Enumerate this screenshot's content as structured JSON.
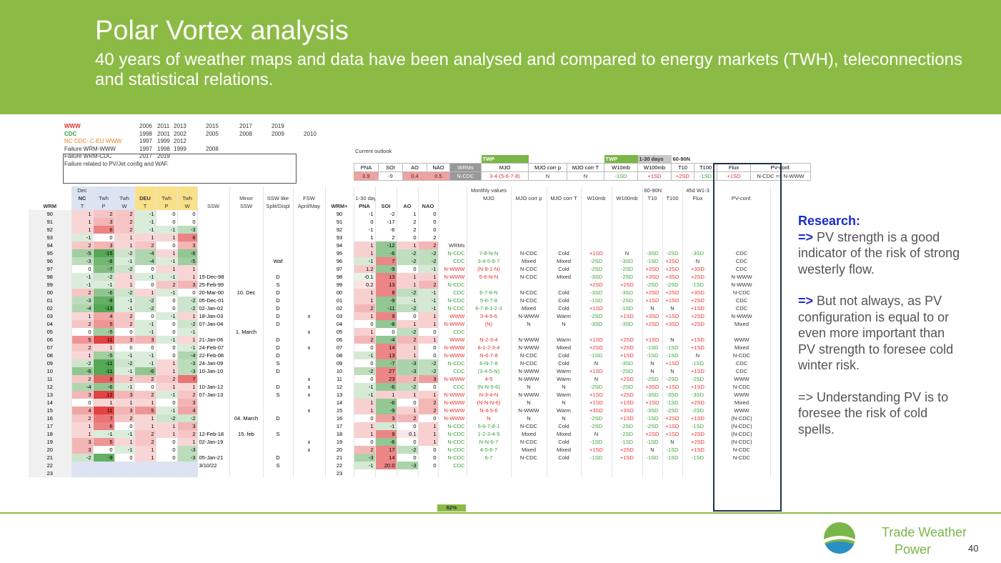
{
  "header": {
    "title": "Polar Vortex analysis",
    "subtitle": "40 years of weather maps and data have been analysed and compared to energy markets (TWH), teleconnections and statistical relations."
  },
  "legend": {
    "items": [
      {
        "label": "WWW",
        "years": [
          "2006",
          "2011",
          "2013",
          "2015",
          "2017",
          "2019"
        ]
      },
      {
        "label": "CDC",
        "years": [
          "1998",
          "2001",
          "2002",
          "2005",
          "2008",
          "2009",
          "2010"
        ]
      },
      {
        "label": "NC CDC- C-EU WWW",
        "years": [
          "1997",
          "1999",
          "2012"
        ]
      },
      {
        "label": "Failure WRM-WWW",
        "years": [
          "1997",
          "1998",
          "1999",
          "2008"
        ]
      },
      {
        "label": "Failure WRM-CDC",
        "years": [
          "2017",
          "2019"
        ]
      }
    ],
    "note": "Failure related to PV/Jet config and WAF."
  },
  "outlook": {
    "label": "Current outlook",
    "tags": [
      "TWP",
      "TWP",
      "1-30 days",
      "60-90N"
    ],
    "columns": [
      "PNA",
      "SOI",
      "AO",
      "NAO",
      "WRMs",
      "MJO",
      "MJO corr p",
      "MJO corr T",
      "W10mb",
      "W100mb",
      "T10",
      "T100",
      "Flux",
      "PV-conf."
    ],
    "values": [
      "0.9",
      "-9",
      "0.4",
      "0.5",
      "N-CDC",
      "3-4-(5-6-7-8)",
      "N",
      "N",
      "-1SD",
      "+1SD",
      "+2SD",
      "-1SD",
      "+1SD",
      "N-CDC => N-WWW"
    ]
  },
  "table": {
    "header_rows": [
      [
        null,
        "Dec",
        null,
        null,
        null,
        null,
        null,
        null,
        null,
        null,
        null,
        null,
        null,
        null,
        null,
        null,
        null,
        "Monthly values",
        null,
        null,
        null,
        null,
        "60-90N",
        null,
        "45d W1-3",
        null
      ],
      [
        null,
        "NC",
        "Twh",
        "Twh",
        "DEU",
        "Twh",
        "Twh",
        null,
        "Minor",
        "SSW like",
        "FSW",
        null,
        "1-30 days",
        null,
        null,
        null,
        null,
        "MJO",
        "MJO corr p",
        "MJO corr T",
        "W10mb",
        "W100mb",
        "T10",
        "T100",
        "Flux",
        "PV-conf."
      ],
      [
        "WRM",
        "T",
        "P",
        "W",
        "T",
        "P",
        "W",
        "SSW",
        "SSW",
        "Split/Displ",
        "April/May",
        "WRM+",
        "PNA",
        "SOI",
        "AO",
        "NAO",
        null,
        null,
        null,
        null,
        null,
        null,
        null,
        null,
        null,
        null
      ]
    ],
    "rows": [
      [
        "90",
        "1",
        "2",
        "2",
        "-1",
        "0",
        "0",
        null,
        null,
        null,
        null,
        "90",
        "-1",
        "-2",
        "1",
        "0",
        null,
        null,
        null,
        null,
        null,
        null,
        null,
        null,
        null,
        null
      ],
      [
        "91",
        "1",
        "3",
        "2",
        "-1",
        "0",
        "0",
        null,
        null,
        null,
        null,
        "91",
        "0",
        "-17",
        "2",
        "0",
        null,
        null,
        null,
        null,
        null,
        null,
        null,
        null,
        null,
        null
      ],
      [
        "92",
        "1",
        "6",
        "2",
        "-1",
        "-1",
        "-3",
        null,
        null,
        null,
        null,
        "92",
        "-1",
        "-6",
        "2",
        "0",
        null,
        null,
        null,
        null,
        null,
        null,
        null,
        null,
        null,
        null
      ],
      [
        "93",
        "-1",
        "0",
        "1",
        "1",
        "1",
        "6",
        null,
        null,
        null,
        null,
        "93",
        "1",
        "2",
        "0",
        "2",
        null,
        null,
        null,
        null,
        null,
        null,
        null,
        null,
        null,
        null
      ],
      [
        "94",
        "2",
        "3",
        "1",
        "2",
        "0",
        "3",
        null,
        null,
        null,
        null,
        "94",
        "1",
        "-12",
        "1",
        "2",
        "WRMs",
        null,
        null,
        null,
        null,
        null,
        null,
        null,
        null,
        null
      ],
      [
        "95",
        "-5",
        "-15",
        "-2",
        "-4",
        "1",
        "-6",
        null,
        null,
        null,
        null,
        "95",
        "1",
        "-6",
        "-2",
        "-2",
        "N-CDC",
        "7-8-N-N",
        "N-CDC",
        "Cold",
        "+1SD",
        "N",
        "-3SD",
        "-2SD",
        "-3SD",
        "CDC"
      ],
      [
        "96",
        "-3",
        "-8",
        "-1",
        "-4",
        "-1",
        "-5",
        null,
        null,
        "Waf",
        null,
        "96",
        "-1",
        "7",
        "-2",
        "-2",
        "CDC",
        "3-4-5-6-7",
        "Mixed",
        "Mixed",
        "-2SD",
        "-3SD",
        "-1SD",
        "+2SD",
        "N",
        "CDC"
      ],
      [
        "97",
        "0",
        "-7",
        "-2",
        "0",
        "1",
        "1",
        null,
        null,
        null,
        null,
        "97",
        "1.2",
        "-9",
        "0",
        "-1",
        "N-WWW",
        "(N-8-1-N)",
        "N-CDC",
        "Cold",
        "-2SD",
        "-2SD",
        "+2SD",
        "+2SD",
        "+3SD",
        "CDC"
      ],
      [
        "98",
        "-1",
        "-2",
        "1",
        "-1",
        "-1",
        "1",
        "15-Dec-98",
        null,
        "D",
        null,
        "98",
        "-0.1",
        "13",
        "1",
        "1",
        "N-WWW",
        "5-6-N-N",
        "N-CDC",
        "Mixed",
        "-3SD",
        "-2SD",
        "+3SD",
        "+3SD",
        "+2SD",
        "N-WWW"
      ],
      [
        "99",
        "-1",
        "-1",
        "1",
        "0",
        "2",
        "3",
        "25-Feb-99",
        null,
        "S",
        null,
        "99",
        "0.2",
        "13",
        "1",
        "2",
        "N-CDC",
        null,
        null,
        null,
        "+2SD",
        "+2SD",
        "-2SD",
        "-2SD",
        "-1SD",
        "N-WWW"
      ],
      [
        "00",
        "2",
        "-6",
        "-2",
        "1",
        "-1",
        "0",
        "20-Mar-00",
        "10. Dec",
        "D",
        null,
        "00",
        "1",
        "8",
        "-2",
        "-1",
        "CDC",
        "6-7-8-N",
        "N-CDC",
        "Cold",
        "-3SD",
        "-3SD",
        "+2SD",
        "+2SD",
        "+3SD",
        "N-CDC"
      ],
      [
        "01",
        "-3",
        "-9",
        "-1",
        "-2",
        "0",
        "-2",
        "05-Dec-01",
        null,
        "D",
        null,
        "01",
        "1",
        "-9",
        "-1",
        "-1",
        "N-CDC",
        "5-6-7-8",
        "N-CDC",
        "Cold",
        "-1SD",
        "-2SD",
        "+1SD",
        "+1SD",
        "+2SD",
        "CDC"
      ],
      [
        "02",
        "-4",
        "-13",
        "-1",
        "-2",
        "0",
        "-2",
        "02-Jan-02",
        null,
        "D",
        null,
        "02",
        "2",
        "-11",
        "-2",
        "-1",
        "N-CDC",
        "6-7-8-1-2-3",
        "Mixed",
        "Cold",
        "+1SD",
        "-1SD",
        "N",
        "N",
        "+1SD",
        "CDC"
      ],
      [
        "03",
        "1",
        "4",
        "2",
        "0",
        "-1",
        "1",
        "18-Jan-03",
        null,
        "D",
        "x",
        "03",
        "1",
        "9",
        "0",
        "1",
        "WWW",
        "3-4-5-6",
        "N-WWW",
        "Warm",
        "-2SD",
        "+1SD",
        "+3SD",
        "+1SD",
        "+2SD",
        "N-WWW"
      ],
      [
        "04",
        "2",
        "5",
        "2",
        "-1",
        "0",
        "-2",
        "07-Jan-04",
        null,
        "D",
        null,
        "04",
        "0",
        "-8",
        "1",
        "1",
        "N-WWW",
        "(N)",
        "N",
        "N",
        "-3SD",
        "-3SD",
        "+2SD",
        "+3SD",
        "+2SD",
        "Mixed"
      ],
      [
        "05",
        "0",
        "-5",
        "0",
        "-1",
        "0",
        "-1",
        null,
        "1. March",
        null,
        "x",
        "05",
        "1",
        "0",
        "-2",
        "0",
        "CDC",
        null,
        null,
        null,
        null,
        null,
        null,
        null,
        null,
        null
      ],
      [
        "06",
        "5",
        "11",
        "3",
        "3",
        "-1",
        "1",
        "21-Jan-06",
        null,
        "D",
        null,
        "06",
        "2",
        "-4",
        "2",
        "1",
        "WWW",
        "N-2-3-4",
        "N-WWW",
        "Warm",
        "+1SD",
        "+2SD",
        "+1SD",
        "N",
        "+1SD",
        "WWW"
      ],
      [
        "07",
        "2",
        "1",
        "0",
        "0",
        "0",
        "-1",
        "24-Feb-07",
        null,
        "D",
        "x",
        "07",
        "0",
        "14",
        "1",
        "0",
        "N-WWW",
        "8-1-2-3-4",
        "N-WWW",
        "Mixed",
        "+2SD",
        "+2SD",
        "-1SD",
        "-1SD",
        "+1SD",
        "Mixed"
      ],
      [
        "08",
        "1",
        "-5",
        "-1",
        "-1",
        "0",
        "-4",
        "22-Feb-08",
        null,
        "D",
        null,
        "08",
        "-1",
        "13",
        "1",
        "0",
        "N-WWW",
        "N-6-7-8",
        "N-CDC",
        "Cold",
        "-1SD",
        "+1SD",
        "-1SD",
        "-1SD",
        "N",
        "N-CDC"
      ],
      [
        "09",
        "-2",
        "-11",
        "-2",
        "-1",
        "1",
        "-3",
        "24-Jan-09",
        null,
        "S",
        null,
        "09",
        "0",
        "-7",
        "-3",
        "-2",
        "N-CDC",
        "6-N-7-8",
        "N-CDC",
        "Cold",
        "N",
        "-3SD",
        "N",
        "+1SD",
        "-1SD",
        "CDC"
      ],
      [
        "10",
        "-6",
        "-11",
        "-1",
        "-6",
        "1",
        "-3",
        "10-Jan-10",
        null,
        "D",
        null,
        "10",
        "-2",
        "27",
        "-3",
        "-2",
        "CDC",
        "(3-4-5-N)",
        "N-WWW",
        "Warm",
        "+1SD",
        "-2SD",
        "N",
        "N",
        "+1SD",
        "CDC"
      ],
      [
        "11",
        "2",
        "8",
        "2",
        "2",
        "2",
        "7",
        null,
        null,
        null,
        "x",
        "11",
        "0",
        "23",
        "2",
        "3",
        "N-WWW",
        "4-5",
        "N-WWW",
        "Warm",
        "N",
        "+2SD",
        "-2SD",
        "-2SD",
        "-2SD",
        "WWW"
      ],
      [
        "12",
        "-4",
        "-6",
        "-1",
        "0",
        "1",
        "1",
        "10-Jan-12",
        null,
        "D",
        "x",
        "12",
        "-1",
        "-6",
        "-2",
        "0",
        "CDC",
        "(N-N-5-6)",
        "N",
        "N",
        "-2SD",
        "-2SD",
        "+3SD",
        "+1SD",
        "+1SD",
        "N-CDC"
      ],
      [
        "13",
        "3",
        "12",
        "3",
        "2",
        "-1",
        "2",
        "07-Jan-13",
        null,
        "S",
        "x",
        "13",
        "-1",
        "1",
        "1",
        "1",
        "N-WWW",
        "N-3-4-N",
        "N-WWW",
        "Warm",
        "+1SD",
        "+2SD",
        "-3SD",
        "-3SD",
        "-3SD",
        "WWW"
      ],
      [
        "14",
        "0",
        "1",
        "1",
        "1",
        "0",
        "3",
        null,
        null,
        null,
        null,
        "14",
        "1",
        "-6",
        "0",
        "2",
        "N-WWW",
        "(N-N-N-6)",
        "N",
        "N",
        "+1SD",
        "+1SD",
        "+1SD",
        "-1SD",
        "+2SD",
        "Mixed"
      ],
      [
        "15",
        "4",
        "11",
        "3",
        "5",
        "-1",
        "4",
        null,
        null,
        null,
        "x",
        "15",
        "1",
        "-9",
        "1",
        "2",
        "N-WWW",
        "N-4-5-6",
        "N-WWW",
        "Warm",
        "+3SD",
        "+3SD",
        "-3SD",
        "-2SD",
        "-2SD",
        "WWW"
      ],
      [
        "16",
        "2",
        "7",
        "2",
        "1",
        "-2",
        "-2",
        null,
        "04. March",
        "D",
        null,
        "16",
        "0",
        "3",
        "2",
        "0",
        "N-WWW",
        "N",
        "N",
        "N",
        "-2SD",
        "+1SD",
        "-1SD",
        "+2SD",
        "+1SD",
        "(N-CDC)"
      ],
      [
        "17",
        "1",
        "6",
        "0",
        "1",
        "1",
        "3",
        null,
        null,
        null,
        null,
        "17",
        "1",
        "-1",
        "0",
        "1",
        "N-CDC",
        "5-6-7-8-1",
        "N-CDC",
        "Cold",
        "-2SD",
        "-2SD",
        "-2SD",
        "+1SD",
        "-1SD",
        "(N-CDC)"
      ],
      [
        "18",
        "1",
        "-1",
        "-1",
        "2",
        "1",
        "2",
        "12-Feb-18",
        "15. feb",
        "S",
        null,
        "18",
        "1",
        "9",
        "0.1",
        "1",
        "N-CDC",
        "1-2-3-4-5",
        "Mixed",
        "Mixed",
        "N",
        "-2SD",
        "+2SD",
        "+1SD",
        "+2SD",
        "(N-CDC)"
      ],
      [
        "19",
        "3",
        "5",
        "1",
        "2",
        "0",
        "1",
        "02-Jan-19",
        null,
        null,
        "x",
        "19",
        "0",
        "-6",
        "0",
        "1",
        "N-CDC",
        "N-N-6-7",
        "N-CDC",
        "Cold",
        "-1SD",
        "-1SD",
        "-1SD",
        "N",
        "+2SD",
        "(N-CDC)"
      ],
      [
        "20",
        "3",
        "0",
        "-1",
        "1",
        "0",
        "-3",
        null,
        null,
        null,
        "x",
        "20",
        "2",
        "17",
        "-2",
        "0",
        "N-CDC",
        "4-5-6-7",
        "Mixed",
        "Mixed",
        "+1SD",
        "+2SD",
        "N",
        "-1SD",
        "+1SD",
        "N-CDC"
      ],
      [
        "21",
        "-2",
        "-9",
        "0",
        "1",
        "0",
        "-3",
        "05-Jan-21",
        null,
        "D",
        null,
        "21",
        "-3",
        "14",
        "0",
        "0",
        "N-CDC",
        "6-7",
        "N-CDC",
        "Cold",
        "-1SD",
        "+1SD",
        "-1SD",
        "-1SD",
        "-1SD",
        "N-CDC"
      ],
      [
        "22",
        null,
        null,
        null,
        null,
        null,
        null,
        "3/10/22",
        null,
        "S",
        null,
        "22",
        "-1",
        "20.0",
        "-3",
        "0",
        "CDC",
        null,
        null,
        null,
        null,
        null,
        null,
        null,
        null,
        null
      ],
      [
        "23",
        null,
        null,
        null,
        null,
        null,
        null,
        null,
        null,
        null,
        null,
        "23",
        null,
        null,
        null,
        null,
        null,
        null,
        null,
        null,
        null,
        null,
        null,
        null,
        null,
        null
      ]
    ],
    "footer_value": "82%"
  },
  "sidebar": {
    "heading": "Research:",
    "paragraphs": [
      {
        "arrow": "=>",
        "text": "PV strength is a good indicator of the risk of strong westerly flow."
      },
      {
        "arrow": "=>",
        "text": "But not always, as  PV configuration is equal to or even more important than PV strength to foresee cold winter risk."
      },
      {
        "arrow": "=>",
        "text": "Understanding PV is to foresee the risk of cold spells."
      }
    ]
  },
  "footer": {
    "brand_line1": "Trade Weather",
    "brand_line2": "Power",
    "page": "40"
  }
}
